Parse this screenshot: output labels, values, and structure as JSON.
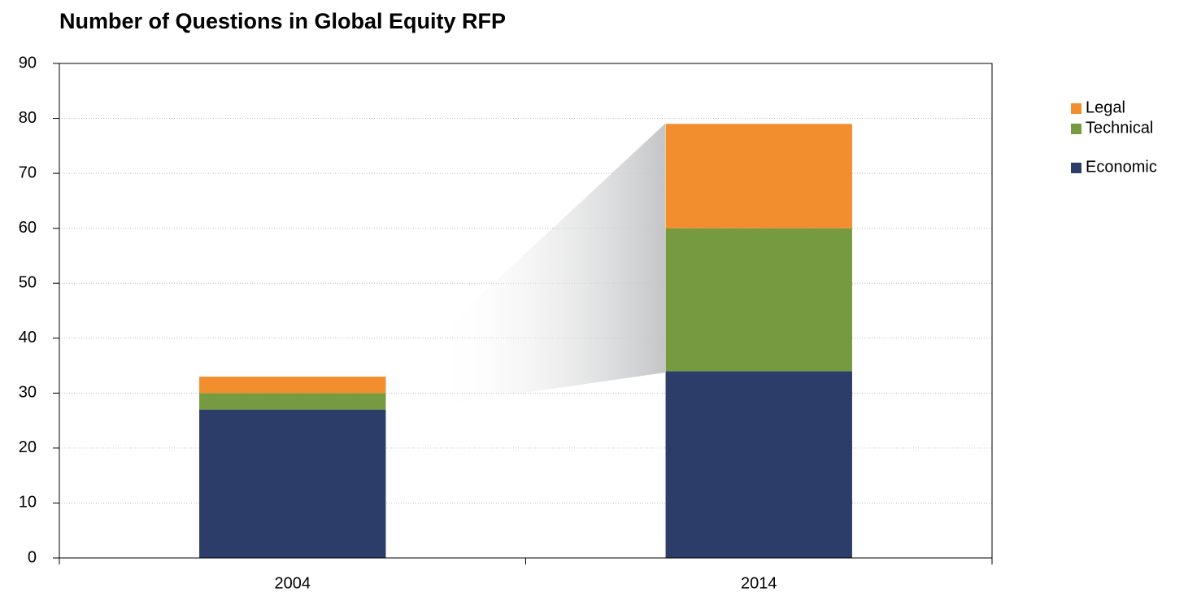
{
  "chart_data": {
    "type": "stacked_bar",
    "title": "Number of Questions in Global Equity RFP",
    "categories": [
      "2004",
      "2014"
    ],
    "series": [
      {
        "name": "Economic",
        "color": "#2b3d68",
        "values": [
          27,
          34
        ]
      },
      {
        "name": "Technical",
        "color": "#759a40",
        "values": [
          3,
          26
        ]
      },
      {
        "name": "Legal",
        "color": "#f28e2d",
        "values": [
          3,
          19
        ]
      }
    ],
    "ylim": [
      0,
      90
    ],
    "yticks": [
      0,
      10,
      20,
      30,
      40,
      50,
      60,
      70,
      80,
      90
    ],
    "grid": true,
    "legend": "right"
  }
}
